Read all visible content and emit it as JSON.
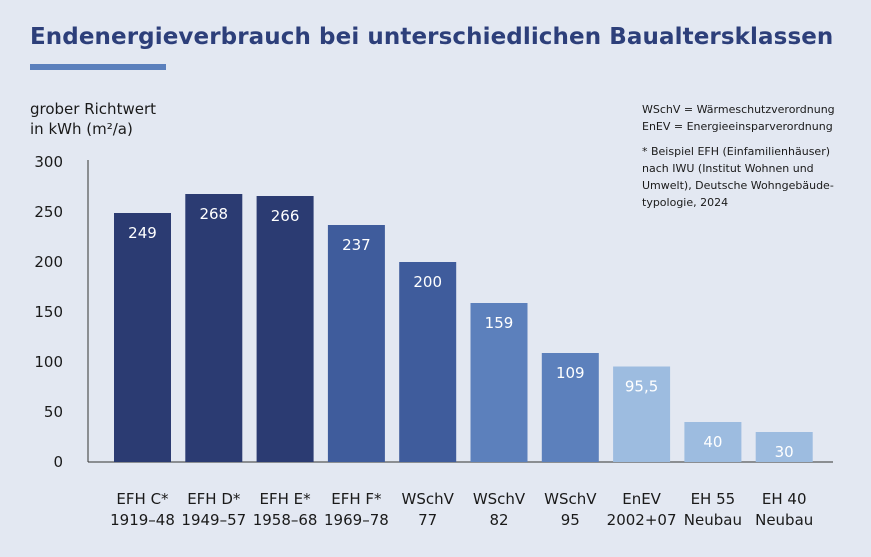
{
  "title": "Endenergieverbrauch bei unterschiedlichen Baualtersklassen",
  "y_label_line1": "grober Richtwert",
  "y_label_line2": "in kWh (m²/a)",
  "notes": {
    "abbrev1": "WSchV = Wärmeschutzverordnung",
    "abbrev2": "EnEV = Energieeinsparverordnung",
    "source_lines": [
      "* Beispiel EFH (Einfamilienhäuser)",
      "nach IWU (Institut Wohnen und",
      "Umwelt), Deutsche Wohngebäude-",
      "typologie, 2024"
    ]
  },
  "chart_data": {
    "type": "bar",
    "title": "Endenergieverbrauch bei unterschiedlichen Baualtersklassen",
    "ylabel": "grober Richtwert in kWh (m²/a)",
    "ylim": [
      0,
      300
    ],
    "yticks": [
      0,
      50,
      100,
      150,
      200,
      250,
      300
    ],
    "grid": false,
    "categories": [
      [
        "EFH C*",
        "1919–48"
      ],
      [
        "EFH D*",
        "1949–57"
      ],
      [
        "EFH E*",
        "1958–68"
      ],
      [
        "EFH F*",
        "1969–78"
      ],
      [
        "WSchV",
        "77"
      ],
      [
        "WSchV",
        "82"
      ],
      [
        "WSchV",
        "95"
      ],
      [
        "EnEV",
        "2002+07"
      ],
      [
        "EH 55",
        "Neubau"
      ],
      [
        "EH 40",
        "Neubau"
      ]
    ],
    "values": [
      249,
      268,
      266,
      237,
      200,
      159,
      109,
      95.5,
      40,
      30
    ],
    "value_labels": [
      "249",
      "268",
      "266",
      "237",
      "200",
      "159",
      "109",
      "95,5",
      "40",
      "30"
    ],
    "bar_colors": [
      "#2b3b72",
      "#2b3b72",
      "#2b3b72",
      "#3f5c9c",
      "#3f5c9c",
      "#5c80bc",
      "#5c80bc",
      "#9dbce0",
      "#9dbce0",
      "#9dbce0"
    ]
  }
}
